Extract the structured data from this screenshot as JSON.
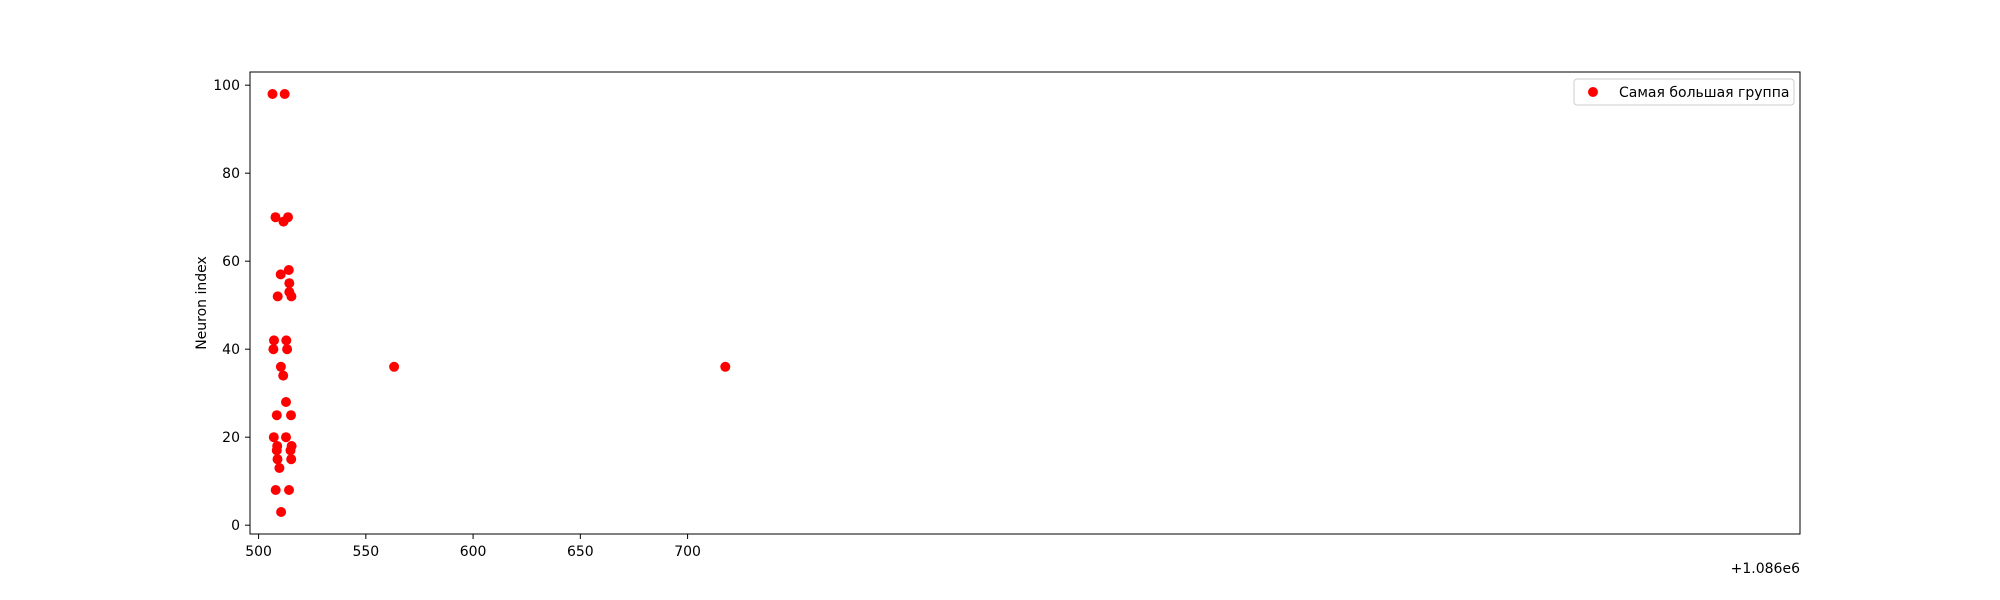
{
  "chart_data": {
    "type": "scatter",
    "title": "",
    "xlabel": "",
    "ylabel": "Neuron index",
    "x_offset_label": "+1.086e6",
    "xlim": [
      496,
      1218.6
    ],
    "ylim": [
      -2,
      103
    ],
    "xticks": [
      500,
      550,
      600,
      650,
      700
    ],
    "yticks": [
      0,
      20,
      40,
      60,
      80,
      100
    ],
    "grid": false,
    "legend_position": "top-right",
    "series": [
      {
        "name": "Самая большая группа",
        "color": "#ff0000",
        "points": [
          {
            "x": 506.5,
            "y": 98
          },
          {
            "x": 512.2,
            "y": 98
          },
          {
            "x": 507.9,
            "y": 70
          },
          {
            "x": 513.7,
            "y": 70
          },
          {
            "x": 511.6,
            "y": 69
          },
          {
            "x": 510.3,
            "y": 57
          },
          {
            "x": 514.1,
            "y": 58
          },
          {
            "x": 514.3,
            "y": 55
          },
          {
            "x": 508.9,
            "y": 52
          },
          {
            "x": 514.3,
            "y": 53
          },
          {
            "x": 515.3,
            "y": 52
          },
          {
            "x": 507.2,
            "y": 42
          },
          {
            "x": 506.9,
            "y": 40
          },
          {
            "x": 512.9,
            "y": 42
          },
          {
            "x": 513.3,
            "y": 40
          },
          {
            "x": 510.4,
            "y": 36
          },
          {
            "x": 511.5,
            "y": 34
          },
          {
            "x": 512.8,
            "y": 28
          },
          {
            "x": 508.5,
            "y": 25
          },
          {
            "x": 515.1,
            "y": 25
          },
          {
            "x": 507.1,
            "y": 20
          },
          {
            "x": 512.8,
            "y": 20
          },
          {
            "x": 508.7,
            "y": 18
          },
          {
            "x": 508.5,
            "y": 17
          },
          {
            "x": 514.9,
            "y": 17
          },
          {
            "x": 515.4,
            "y": 18
          },
          {
            "x": 508.8,
            "y": 15
          },
          {
            "x": 515.2,
            "y": 15
          },
          {
            "x": 509.7,
            "y": 13
          },
          {
            "x": 508.0,
            "y": 8
          },
          {
            "x": 514.2,
            "y": 8
          },
          {
            "x": 510.5,
            "y": 3
          },
          {
            "x": 563.2,
            "y": 36
          },
          {
            "x": 717.6,
            "y": 36
          }
        ]
      }
    ]
  }
}
